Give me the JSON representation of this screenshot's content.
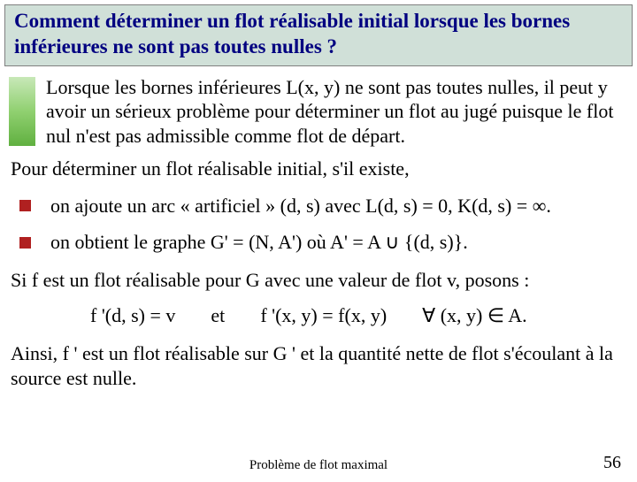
{
  "title": "Comment déterminer un flot réalisable initial lorsque les bornes inférieures ne sont pas toutes nulles ?",
  "intro": "Lorsque les bornes inférieures L(x, y) ne sont pas toutes nulles, il peut y avoir un sérieux problème pour déterminer un flot au jugé puisque le flot nul n'est pas admissible comme flot de départ.",
  "para1": "Pour déterminer un flot réalisable initial, s'il existe,",
  "bullet1": "on ajoute un arc « artificiel » (d, s) avec L(d, s) = 0, K(d, s) = ∞.",
  "bullet2": "on obtient le graphe G' = (N, A') où A' = A ∪ {(d, s)}.",
  "para2": "Si f est un flot réalisable pour G avec une valeur de flot v, posons :",
  "eq1": "f '(d, s) = v",
  "eq2": "et",
  "eq3": "f '(x, y) = f(x, y)",
  "eq4": "∀ (x, y) ∈ A.",
  "para3": "Ainsi, f ' est un flot réalisable sur G ' et la quantité nette de flot s'écoulant à la source est nulle.",
  "footer": "Problème de flot maximal",
  "page": "56",
  "colors": {
    "title_bg": "#d0e0d8",
    "title_fg": "#000080",
    "bullet": "#b02020",
    "bar_top": "#c8e8b8",
    "bar_bottom": "#60b040"
  }
}
